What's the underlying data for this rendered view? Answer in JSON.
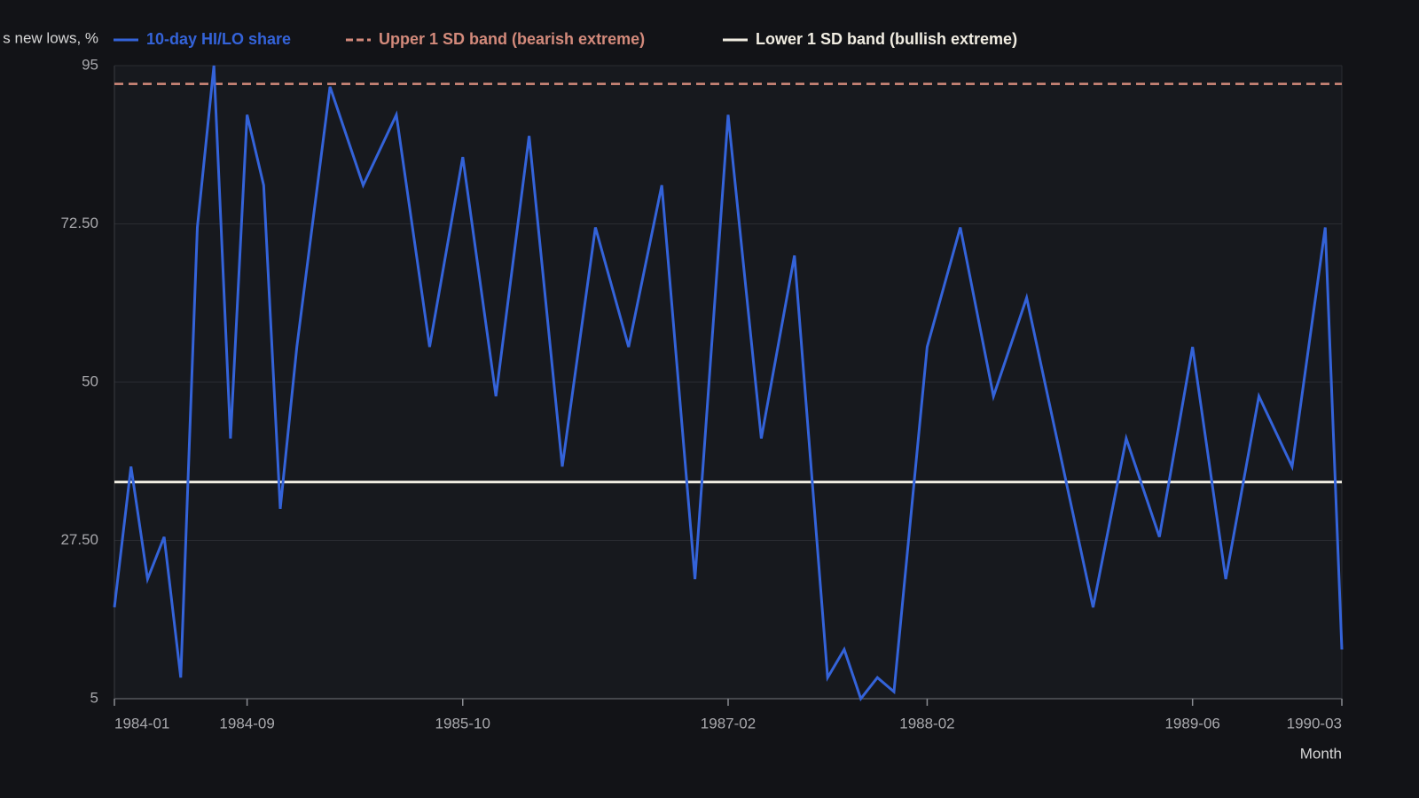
{
  "chart_data": {
    "type": "line",
    "y_label": "s new lows, %",
    "x_label": "Month",
    "x": [
      "1984-01",
      "1984-02",
      "1984-03",
      "1984-04",
      "1984-05",
      "1984-06",
      "1984-07",
      "1984-08",
      "1984-09",
      "1984-10",
      "1984-11",
      "1984-12",
      "1985-02",
      "1985-04",
      "1985-06",
      "1985-08",
      "1985-10",
      "1985-12",
      "1986-02",
      "1986-04",
      "1986-06",
      "1986-08",
      "1986-10",
      "1986-12",
      "1987-02",
      "1987-04",
      "1987-06",
      "1987-08",
      "1987-09",
      "1987-10",
      "1987-11",
      "1987-12",
      "1988-02",
      "1988-04",
      "1988-06",
      "1988-08",
      "1988-12",
      "1989-02",
      "1989-04",
      "1989-06",
      "1989-08",
      "1989-10",
      "1989-12",
      "1990-02",
      "1990-03"
    ],
    "series": [
      {
        "name": "10-day HI/LO share",
        "color": "#3463d9",
        "values": [
          18,
          38,
          22,
          28,
          8,
          72,
          95,
          42,
          88,
          78,
          32,
          55,
          92,
          78,
          88,
          55,
          82,
          48,
          85,
          38,
          72,
          55,
          78,
          22,
          88,
          42,
          68,
          8,
          12,
          5,
          8,
          6,
          55,
          72,
          48,
          62,
          18,
          42,
          28,
          55,
          22,
          48,
          38,
          72,
          12
        ]
      }
    ],
    "reference_lines": [
      {
        "name": "Upper 1 SD band (bearish extreme)",
        "value": 92.4,
        "color": "#d38a7b",
        "dashed": true
      },
      {
        "name": "Lower 1 SD band (bullish extreme)",
        "value": 35.8,
        "color": "#f1ede2",
        "dashed": false
      }
    ],
    "xlim": [
      "1984-01",
      "1990-03"
    ],
    "xticks": [
      "1984-01",
      "1984-09",
      "1985-10",
      "1987-02",
      "1988-02",
      "1989-06",
      "1990-03"
    ],
    "ylim": [
      5,
      95
    ],
    "yticks": [
      5,
      {
        "value": 27.5,
        "label": "27.50"
      },
      50,
      {
        "value": 72.5,
        "label": "72.50"
      },
      95
    ],
    "grid": true
  }
}
